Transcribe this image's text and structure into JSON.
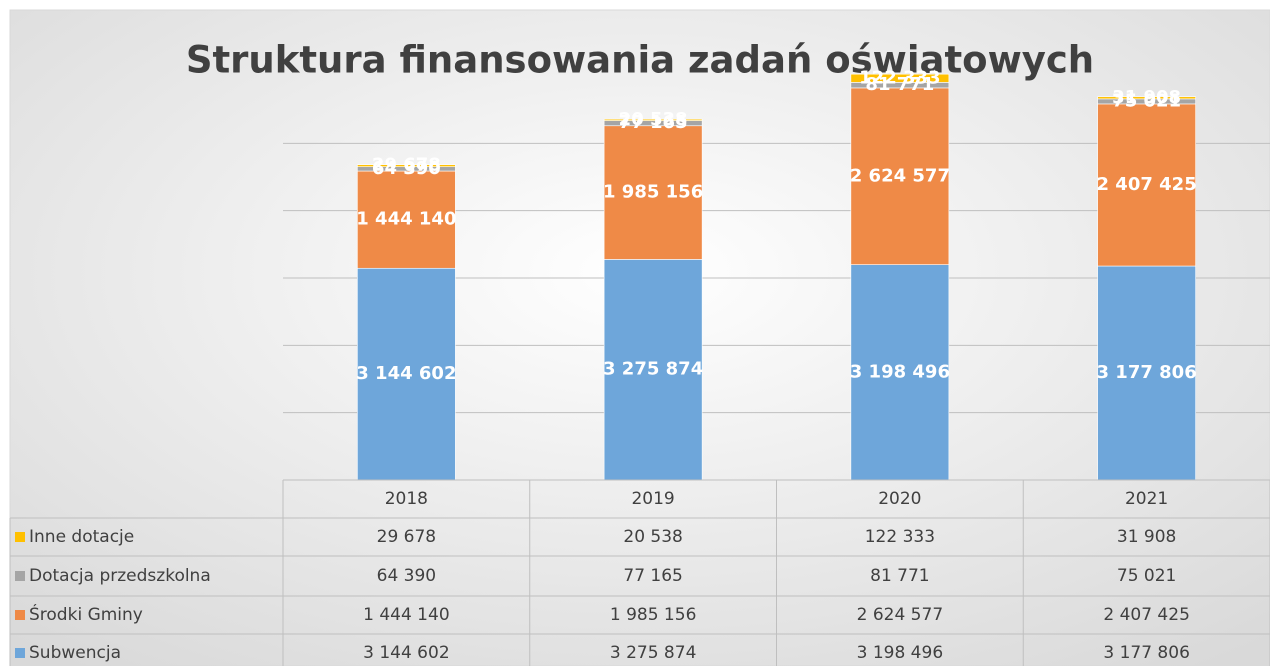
{
  "chart_data": {
    "type": "stacked_bar",
    "title": "Struktura finansowania zadań oświatowych",
    "categories": [
      "2018",
      "2019",
      "2020",
      "2021"
    ],
    "series": [
      {
        "name": "Subwencja",
        "color": "#6ea6da",
        "values": [
          3144602,
          3275874,
          3198496,
          3177806
        ],
        "value_labels": [
          "3 144 602",
          "3 275 874",
          "3 198 496",
          "3 177 806"
        ]
      },
      {
        "name": "Środki Gminy",
        "color": "#ef8a47",
        "values": [
          1444140,
          1985156,
          2624577,
          2407425
        ],
        "value_labels": [
          "1 444 140",
          "1 985 156",
          "2 624 577",
          "2 407 425"
        ]
      },
      {
        "name": "Dotacja przedszkolna",
        "color": "#a5a5a5",
        "values": [
          64390,
          77165,
          81771,
          75021
        ],
        "value_labels": [
          "64 390",
          "77 165",
          "81 771",
          "75 021"
        ]
      },
      {
        "name": "Inne dotacje",
        "color": "#ffc000",
        "values": [
          29678,
          20538,
          122333,
          31908
        ],
        "value_labels": [
          "29 678",
          "20 538",
          "122 333",
          "31 908"
        ]
      }
    ],
    "ylim": [
      0,
      6000000
    ],
    "yticks": [
      0,
      1000000,
      2000000,
      3000000,
      4000000,
      5000000
    ],
    "grid": true,
    "legend": "table"
  }
}
